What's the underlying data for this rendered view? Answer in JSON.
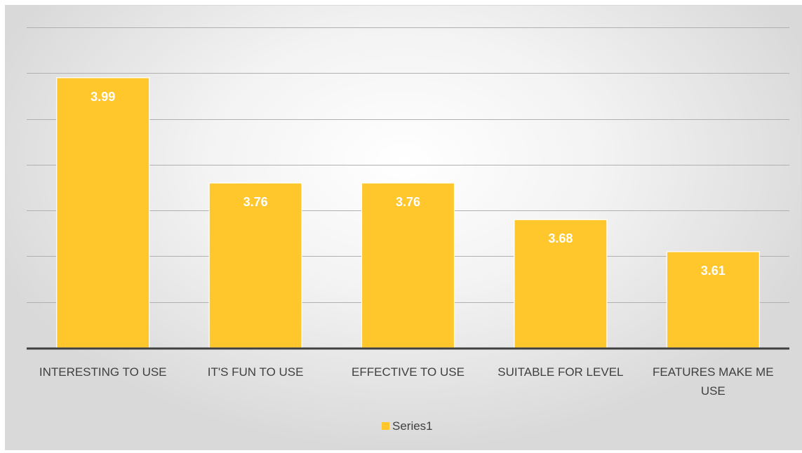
{
  "chart_data": {
    "type": "bar",
    "categories": [
      "INTERESTING TO USE",
      "IT'S FUN TO USE",
      "EFFECTIVE TO USE",
      "SUITABLE FOR LEVEL",
      "FEATURES MAKE ME USE"
    ],
    "category_lines": [
      [
        "INTERESTING TO USE"
      ],
      [
        "IT'S FUN TO USE"
      ],
      [
        "EFFECTIVE TO USE"
      ],
      [
        "SUITABLE FOR LEVEL"
      ],
      [
        "FEATURES MAKE ME",
        "USE"
      ]
    ],
    "series": [
      {
        "name": "Series1",
        "values": [
          3.99,
          3.76,
          3.76,
          3.68,
          3.61
        ],
        "data_labels": [
          "3.99",
          "3.76",
          "3.76",
          "3.68",
          "3.61"
        ],
        "color": "#FFC72C"
      }
    ],
    "ylim": [
      3.4,
      4.1
    ],
    "grid": true,
    "legend": "bottom",
    "title": "",
    "xlabel": "",
    "ylabel": ""
  },
  "legend": {
    "label": "Series1"
  }
}
